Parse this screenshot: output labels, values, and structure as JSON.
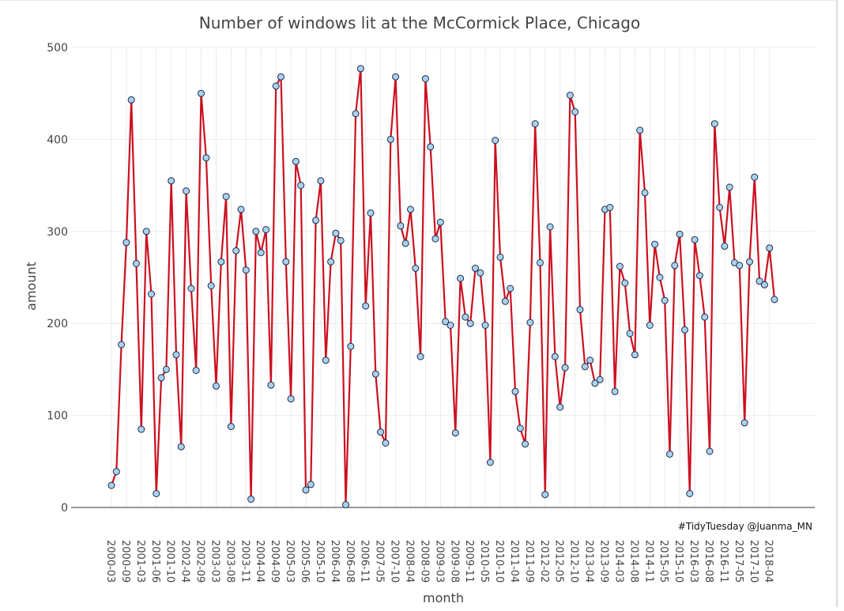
{
  "chart_data": {
    "type": "line",
    "title": "Number of windows lit at the McCormick Place, Chicago",
    "xlabel": "month",
    "ylabel": "amount",
    "ylim": [
      0,
      500
    ],
    "yticks": [
      0,
      100,
      200,
      300,
      400,
      500
    ],
    "grid": true,
    "caption": "#TidyTuesday @Juanma_MN",
    "line_color": "#cc1020",
    "point_fill": "#a9d2f2",
    "point_stroke": "#1f2a44",
    "xtick_labels": [
      "2000-03",
      "2000-09",
      "2001-03",
      "2001-06",
      "2001-10",
      "2002-04",
      "2002-09",
      "2003-03",
      "2003-08",
      "2003-11",
      "2004-04",
      "2004-09",
      "2005-03",
      "2005-06",
      "2005-10",
      "2006-04",
      "2006-08",
      "2006-11",
      "2007-05",
      "2007-10",
      "2008-04",
      "2008-09",
      "2009-03",
      "2009-08",
      "2009-11",
      "2010-05",
      "2010-10",
      "2011-04",
      "2011-09",
      "2012-02",
      "2012-05",
      "2012-10",
      "2013-04",
      "2013-09",
      "2014-03",
      "2014-08",
      "2014-11",
      "2015-05",
      "2015-10",
      "2016-03",
      "2016-08",
      "2016-11",
      "2017-05",
      "2017-10",
      "2018-04"
    ],
    "values": [
      24,
      39,
      177,
      288,
      443,
      265,
      85,
      300,
      232,
      15,
      141,
      150,
      355,
      166,
      66,
      344,
      238,
      149,
      450,
      380,
      241,
      132,
      267,
      338,
      88,
      279,
      324,
      258,
      9,
      300,
      277,
      302,
      133,
      458,
      468,
      267,
      118,
      376,
      350,
      19,
      25,
      312,
      355,
      160,
      267,
      298,
      290,
      3,
      175,
      428,
      477,
      219,
      320,
      145,
      82,
      70,
      400,
      468,
      306,
      287,
      324,
      260,
      164,
      466,
      392,
      292,
      310,
      202,
      198,
      81,
      249,
      207,
      200,
      260,
      255,
      198,
      49,
      399,
      272,
      224,
      238,
      126,
      86,
      69,
      201,
      417,
      266,
      14,
      305,
      164,
      109,
      152,
      448,
      430,
      215,
      153,
      160,
      135,
      139,
      324,
      326,
      126,
      262,
      244,
      189,
      166,
      410,
      342,
      198,
      286,
      250,
      225,
      58,
      263,
      297,
      193,
      15,
      291,
      252,
      207,
      61,
      417,
      326,
      284,
      348,
      266,
      263,
      92,
      267,
      359,
      246,
      242,
      282,
      226
    ]
  }
}
